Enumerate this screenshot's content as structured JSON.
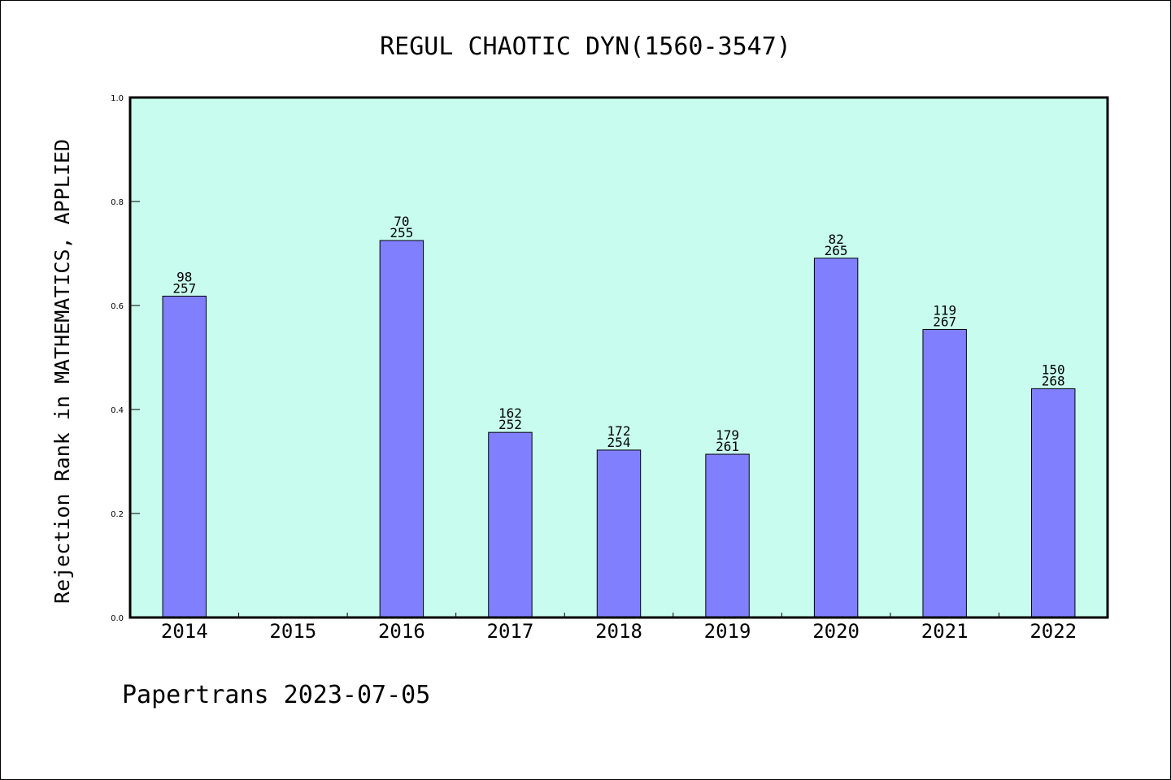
{
  "colors": {
    "plot_background": "#c8fcee",
    "bar_fill": "#8080ff",
    "bar_stroke": "#000000",
    "axis": "#000000"
  },
  "chart_data": {
    "type": "bar",
    "title": "REGUL CHAOTIC DYN(1560-3547)",
    "xlabel": "",
    "ylabel": "Rejection Rank in MATHEMATICS, APPLIED",
    "categories": [
      "2014",
      "2015",
      "2016",
      "2017",
      "2018",
      "2019",
      "2020",
      "2021",
      "2022"
    ],
    "values": [
      0.618,
      null,
      0.725,
      0.356,
      0.322,
      0.314,
      0.691,
      0.554,
      0.44
    ],
    "bar_labels": [
      [
        "98",
        "257"
      ],
      null,
      [
        "70",
        "255"
      ],
      [
        "162",
        "252"
      ],
      [
        "172",
        "254"
      ],
      [
        "179",
        "261"
      ],
      [
        "82",
        "265"
      ],
      [
        "119",
        "267"
      ],
      [
        "150",
        "268"
      ]
    ],
    "ylim": [
      0,
      1.0
    ],
    "yticks": [
      "0.0",
      "0.2",
      "0.4",
      "0.6",
      "0.8",
      "1.0"
    ],
    "grid": false,
    "legend": "none"
  },
  "footer": "Papertrans 2023-07-05"
}
